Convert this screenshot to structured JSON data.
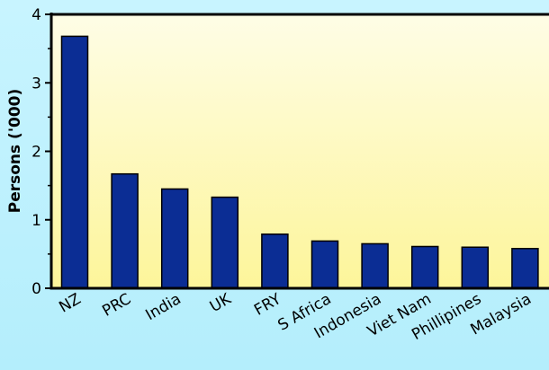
{
  "chart_data": {
    "type": "bar",
    "title": "",
    "xlabel": "",
    "ylabel": "Persons ('000)",
    "categories": [
      "NZ",
      "PRC",
      "India",
      "UK",
      "FRY",
      "S Africa",
      "Indonesia",
      "Viet Nam",
      "Phillipines",
      "Malaysia"
    ],
    "values": [
      3.68,
      1.67,
      1.45,
      1.33,
      0.79,
      0.69,
      0.65,
      0.61,
      0.6,
      0.58
    ],
    "ylim": [
      0,
      4
    ],
    "yticks": [
      "0",
      "1",
      "2",
      "3",
      "4"
    ],
    "grid": false,
    "legend": "none",
    "colors": {
      "bar": "#0b2d94",
      "bar_stroke": "#000000",
      "plot_bg_top": "#fefde3",
      "plot_bg_bottom": "#fdf59a",
      "page_bg": "#b8f0fc"
    }
  }
}
